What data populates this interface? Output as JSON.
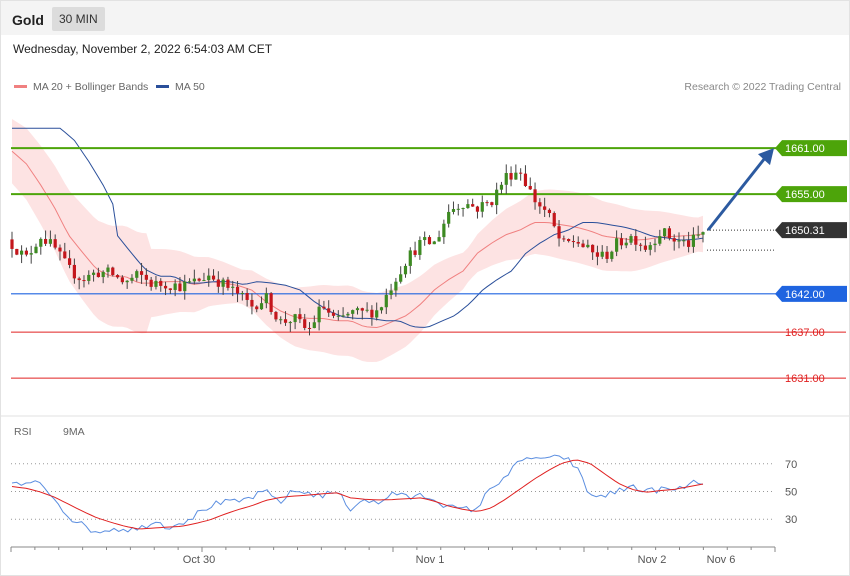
{
  "header": {
    "title": "Gold",
    "timeframe": "30 MIN"
  },
  "datetime": "Wednesday, November 2, 2022 6:54:03 AM CET",
  "legend": {
    "ma20": {
      "label": "MA 20 + Bollinger Bands",
      "color": "#f08080"
    },
    "ma50": {
      "label": "MA 50",
      "color": "#2a4f9a"
    }
  },
  "credit": "Research © 2022 Trading Central",
  "rsi_legend": {
    "rsi": {
      "label": "RSI",
      "color": "#5b8ee0"
    },
    "ma9": {
      "label": "9MA",
      "color": "#e02020"
    }
  },
  "chart_data": [
    {
      "type": "candlestick",
      "title": "Gold",
      "timeframe": "30 MIN",
      "ylim": [
        1627.5,
        1666.5
      ],
      "current_price": 1650.31,
      "levels": [
        {
          "label": "1661.00",
          "value": 1661.0,
          "kind": "resistance",
          "color": "#4da40a"
        },
        {
          "label": "1655.00",
          "value": 1655.0,
          "kind": "resistance",
          "color": "#4da40a"
        },
        {
          "label": "1650.31",
          "value": 1650.31,
          "kind": "current",
          "color": "#333333"
        },
        {
          "label": "1642.00",
          "value": 1642.0,
          "kind": "pivot",
          "color": "#1f64e0"
        },
        {
          "label": "1637.00",
          "value": 1637.0,
          "kind": "support",
          "color": "#e02020"
        },
        {
          "label": "1631.00",
          "value": 1631.0,
          "kind": "support",
          "color": "#e02020"
        }
      ],
      "forecast": {
        "direction": "up",
        "target": 1661.0
      },
      "x_labels": [
        "Oct 30",
        "Nov 1",
        "Nov 2",
        "Nov 6"
      ],
      "close_path": [
        1648.5,
        1646.6,
        1649.6,
        1648.0,
        1645.2,
        1643.9,
        1644.8,
        1644.7,
        1643.4,
        1644.5,
        1643.2,
        1643.3,
        1643.0,
        1643.6,
        1644.5,
        1643.2,
        1642.0,
        1640.4,
        1641.5,
        1638.3,
        1638.8,
        1637.1,
        1640.5,
        1638.3,
        1639.5,
        1639.5,
        1639.9,
        1643.4,
        1646.6,
        1648.7,
        1648.6,
        1652.9,
        1653.9,
        1653.2,
        1654.1,
        1657.3,
        1658.2,
        1654.4,
        1652.4,
        1648.3,
        1649.0,
        1647.4,
        1646.8,
        1648.7,
        1649.5,
        1648.0,
        1650.2,
        1649.0,
        1648.5,
        1650.0
      ],
      "bollinger_mid_path": [
        1660.6,
        1659.0,
        1656.3,
        1653.3,
        1649.7,
        1647.4,
        1645.2,
        1644.3,
        1644.3,
        1643.4,
        1643.4,
        1643.6,
        1643.6,
        1643.2,
        1643.6,
        1643.4,
        1643.1,
        1642.5,
        1641.0,
        1639.8,
        1639.0,
        1638.8,
        1638.8,
        1638.5,
        1638.5,
        1637.7,
        1637.6,
        1638.4,
        1639.2,
        1640.7,
        1642.6,
        1643.9,
        1645.0,
        1647.3,
        1648.6,
        1649.7,
        1650.3,
        1651.3,
        1651.3,
        1651.0,
        1650.7,
        1650.2,
        1649.5,
        1649.3,
        1649.0,
        1649.1,
        1649.4,
        1649.5,
        1649.6,
        1649.8
      ],
      "rsi": {
        "levels": [
          70,
          50,
          30
        ],
        "ylim": [
          15,
          85
        ],
        "rsi_path": [
          56.3,
          54.3,
          56.8,
          45.3,
          32.4,
          25.4,
          20.8,
          23.3,
          23.1,
          22.5,
          29.2,
          24.6,
          27.7,
          32.9,
          39.7,
          42.0,
          42.2,
          46.1,
          49.7,
          42.6,
          50.5,
          49.0,
          47.0,
          50.0,
          37.9,
          45.0,
          40.3,
          49.9,
          45.3,
          47.2,
          44.7,
          38.4,
          36.8,
          38.0,
          53.2,
          61.2,
          71.0,
          75.4,
          72.2,
          76.1,
          67.8,
          46.4,
          47.4,
          50.1,
          54.2,
          49.6,
          52.0,
          50.2,
          55.0,
          57.1
        ],
        "ma9_path": [
          53.6,
          52.3,
          49.7,
          46.0,
          40.9,
          35.8,
          31.1,
          27.8,
          24.9,
          22.9,
          23.6,
          24.3,
          24.8,
          26.9,
          29.4,
          33.3,
          36.8,
          39.7,
          43.6,
          45.7,
          46.7,
          47.4,
          48.3,
          49.1,
          45.4,
          44.4,
          43.9,
          44.2,
          44.8,
          45.4,
          42.9,
          39.4,
          37.1,
          35.5,
          38.2,
          44.5,
          51.6,
          58.7,
          65.0,
          70.4,
          73.0,
          70.2,
          62.9,
          55.9,
          51.4,
          49.5,
          50.7,
          51.6,
          53.5,
          55.4
        ]
      }
    }
  ]
}
